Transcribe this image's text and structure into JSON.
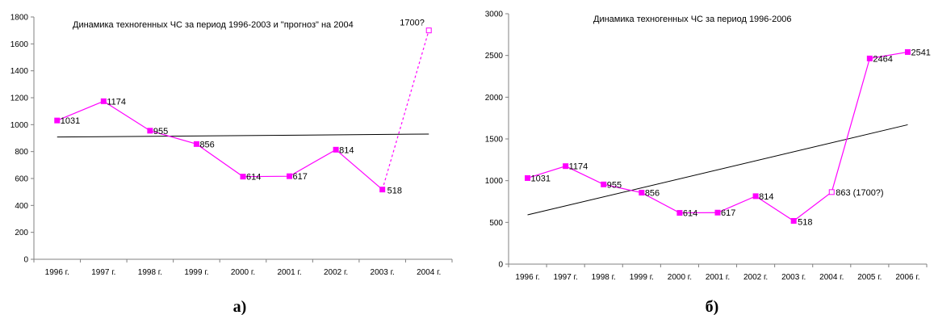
{
  "chart_data": [
    {
      "type": "line",
      "title": "Динамика техногенных ЧС за период 1996-2003 и \"прогноз\" на 2004",
      "caption": "а)",
      "categories": [
        "1996 г.",
        "1997 г.",
        "1998 г.",
        "1999 г.",
        "2000 г.",
        "2001 г.",
        "2002 г.",
        "2003 г.",
        "2004 г."
      ],
      "yticks": [
        "0",
        "200",
        "400",
        "600",
        "800",
        "1000",
        "1200",
        "1400",
        "1600",
        "1800"
      ],
      "ylim": [
        0,
        1800
      ],
      "series": [
        {
          "values": [
            1031,
            1174,
            955,
            856,
            614,
            617,
            814,
            518,
            null
          ],
          "labels": [
            "1031",
            "1174",
            "955",
            "856",
            "614",
            "617",
            "814",
            "518",
            ""
          ],
          "color": "#ff00ff",
          "style": "solid"
        },
        {
          "values": [
            null,
            null,
            null,
            null,
            null,
            null,
            null,
            518,
            1700
          ],
          "labels": [
            "",
            "",
            "",
            "",
            "",
            "",
            "",
            "",
            "1700?"
          ],
          "color": "#ff00ff",
          "style": "dotted",
          "hollow_last": true
        }
      ],
      "trendline": {
        "start": 908,
        "end": 930,
        "color": "#000000"
      },
      "grid": false,
      "legend": "none"
    },
    {
      "type": "line",
      "title": "Динамика техногенных ЧС за период 1996-2006",
      "caption": "б)",
      "categories": [
        "1996 г.",
        "1997 г.",
        "1998 г.",
        "1999 г.",
        "2000 г.",
        "2001 г.",
        "2002 г.",
        "2003 г.",
        "2004 г.",
        "2005 г.",
        "2006 г."
      ],
      "yticks": [
        "0",
        "500",
        "1000",
        "1500",
        "2000",
        "2500",
        "3000"
      ],
      "ylim": [
        0,
        3000
      ],
      "series": [
        {
          "values": [
            1031,
            1174,
            955,
            856,
            614,
            617,
            814,
            518,
            863,
            2464,
            2541
          ],
          "labels": [
            "1031",
            "1174",
            "955",
            "856",
            "614",
            "617",
            "814",
            "518",
            "863 (1700?)",
            "2464",
            "2541"
          ],
          "color": "#ff00ff",
          "style": "solid",
          "hollow_indices": [
            8
          ]
        }
      ],
      "trendline": {
        "start": 590,
        "end": 1670,
        "color": "#000000"
      },
      "grid": false,
      "legend": "none"
    }
  ]
}
